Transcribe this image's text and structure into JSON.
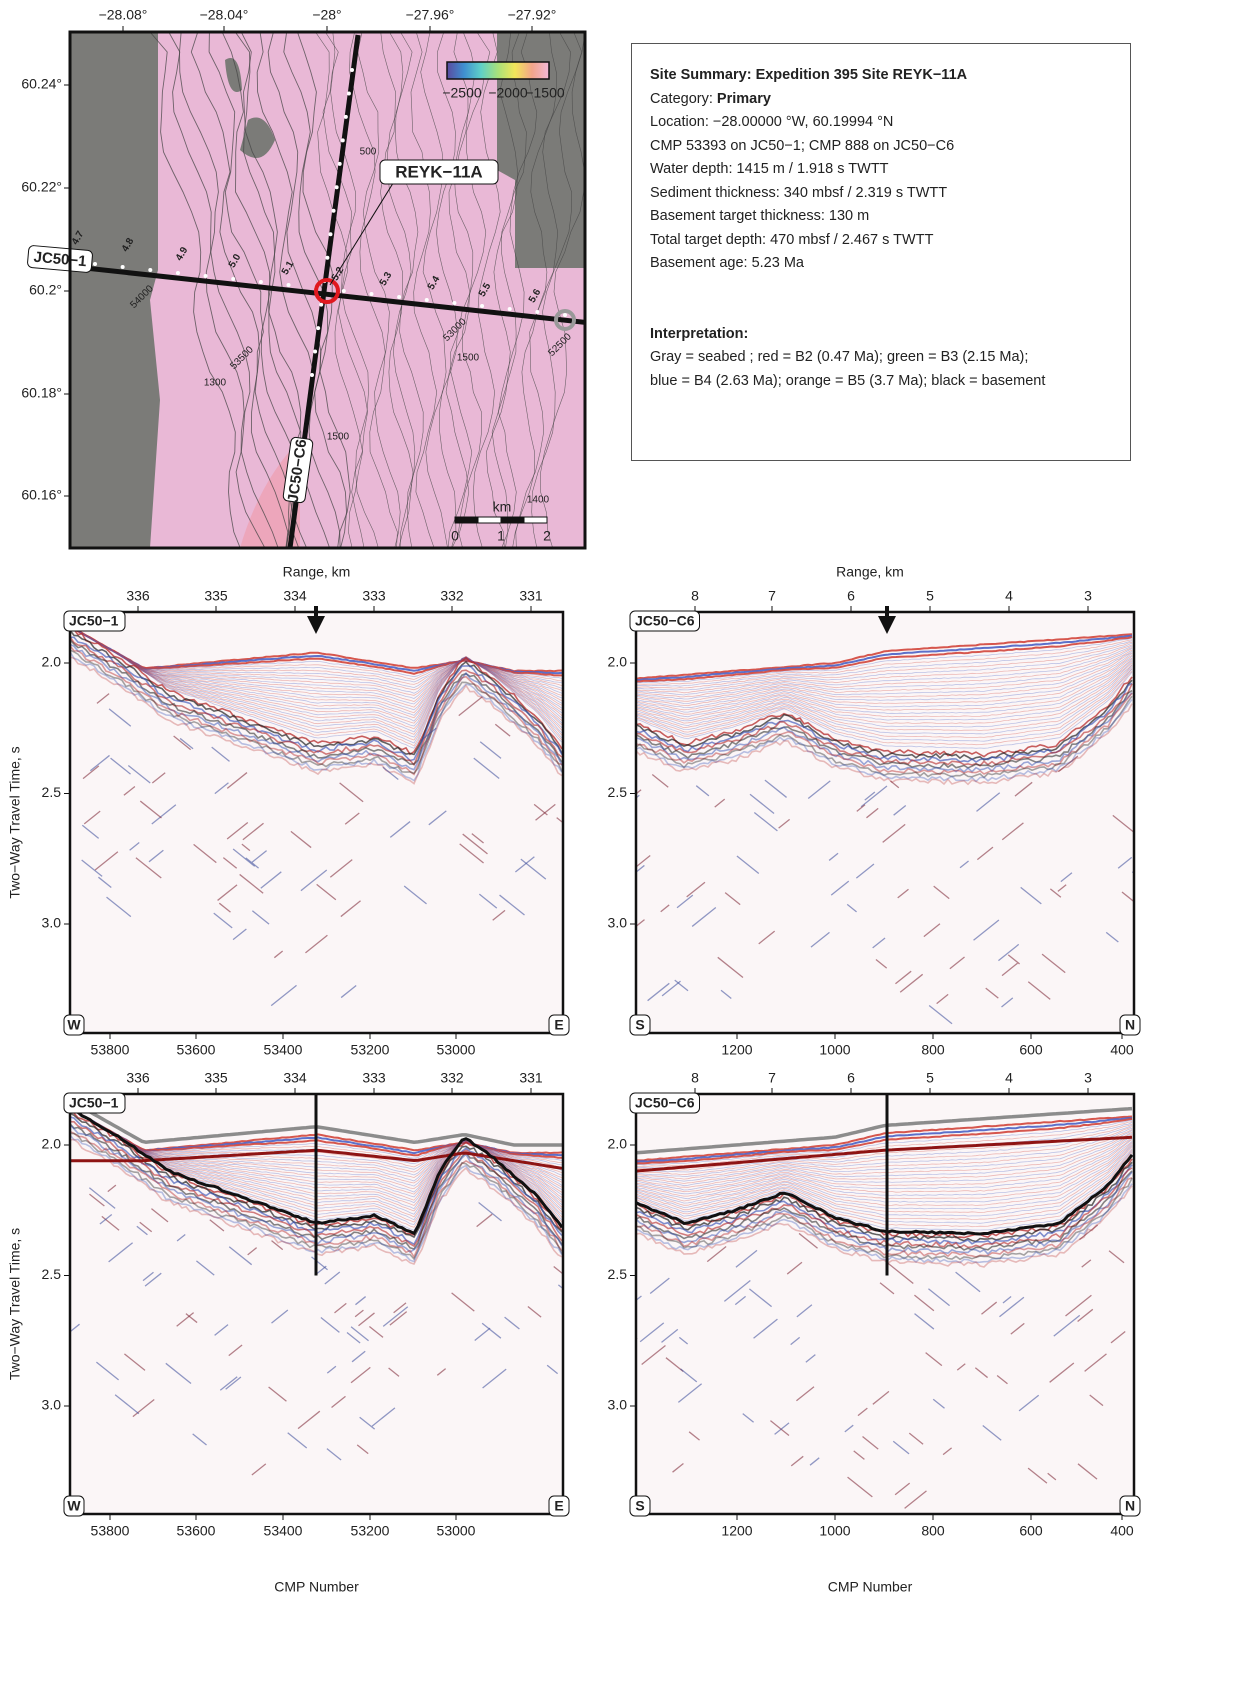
{
  "map": {
    "x_ticks": [
      "−28.08°",
      "−28.04°",
      "−28°",
      "−27.96°",
      "−27.92°"
    ],
    "y_ticks": [
      "60.24°",
      "60.22°",
      "60.2°",
      "60.18°",
      "60.16°"
    ],
    "colorbar_labels": [
      "−2500",
      "−2000",
      "−1500"
    ],
    "scale_unit": "km",
    "scale_labels": [
      "0",
      "1",
      "2"
    ],
    "site_label": "REYK−11A",
    "line_labels": [
      "JC50−1",
      "JC50−C6"
    ],
    "shotpoint_labels": [
      "4.7",
      "4.8",
      "4.9",
      "5.0",
      "5.1",
      "5.2",
      "5.3",
      "5.4",
      "5.5",
      "5.6"
    ],
    "cmp_labels": [
      "54000",
      "53500",
      "53000",
      "52500"
    ],
    "contour_labels": [
      "500",
      "1500",
      "1300",
      "1500",
      "1400"
    ]
  },
  "summary": {
    "title": "Site Summary: Expedition 395 Site REYK−11A",
    "category_label": "Category:",
    "category_value": "Primary",
    "lines": [
      "Location: −28.00000 °W, 60.19994 °N",
      "CMP 53393 on JC50−1; CMP 888 on JC50−C6",
      "Water depth: 1415 m / 1.918 s TWTT",
      "Sediment thickness: 340 mbsf / 2.319 s TWTT",
      "Basement target thickness: 130 m",
      "Total target depth: 470 mbsf / 2.467 s TWTT",
      "Basement age: 5.23 Ma"
    ],
    "interpretation_title": "Interpretation:",
    "interpretation": [
      "Gray = seabed ; red = B2 (0.47 Ma); green = B3 (2.15 Ma);",
      "blue = B4 (2.63 Ma); orange = B5 (3.7 Ma); black = basement"
    ]
  },
  "panels": [
    {
      "line": "JC50−1",
      "range_label": "Range, km",
      "range_ticks": [
        "336",
        "335",
        "334",
        "333",
        "332",
        "331"
      ],
      "y_label": "Two−Way Travel Time, s",
      "y_ticks": [
        "2.0",
        "2.5",
        "3.0"
      ],
      "cmp_ticks": [
        "53800",
        "53600",
        "53400",
        "53200",
        "53000"
      ],
      "left_end": "W",
      "right_end": "E"
    },
    {
      "line": "JC50−C6",
      "range_label": "Range, km",
      "range_ticks": [
        "8",
        "7",
        "6",
        "5",
        "4",
        "3"
      ],
      "y_ticks": [
        "2.0",
        "2.5",
        "3.0"
      ],
      "cmp_ticks": [
        "1200",
        "1000",
        "800",
        "600",
        "400"
      ],
      "left_end": "S",
      "right_end": "N"
    },
    {
      "line": "JC50−1",
      "range_ticks": [
        "336",
        "335",
        "334",
        "333",
        "332",
        "331"
      ],
      "y_label": "Two−Way Travel Time, s",
      "y_ticks": [
        "2.0",
        "2.5",
        "3.0"
      ],
      "cmp_ticks": [
        "53800",
        "53600",
        "53400",
        "53200",
        "53000"
      ],
      "left_end": "W",
      "right_end": "E",
      "x_label": "CMP Number"
    },
    {
      "line": "JC50−C6",
      "range_ticks": [
        "8",
        "7",
        "6",
        "5",
        "4",
        "3"
      ],
      "y_ticks": [
        "2.0",
        "2.5",
        "3.0"
      ],
      "cmp_ticks": [
        "1200",
        "1000",
        "800",
        "600",
        "400"
      ],
      "left_end": "S",
      "right_end": "N",
      "x_label": "CMP Number"
    }
  ]
}
